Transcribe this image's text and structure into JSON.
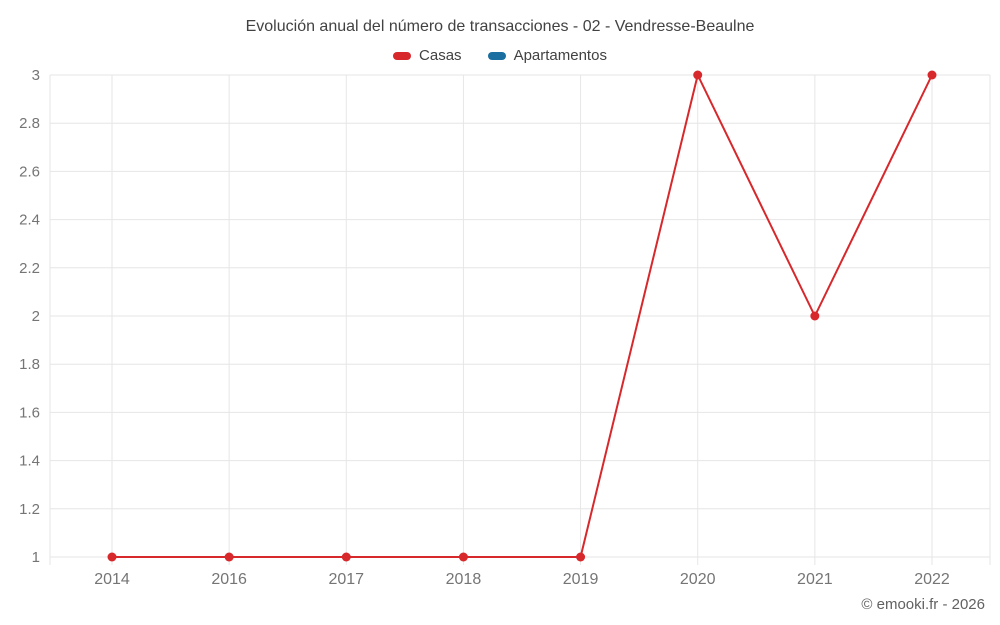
{
  "title": "Evolución anual del número de transacciones - 02 - Vendresse-Beaulne",
  "footer": "© emooki.fr - 2026",
  "colors": {
    "grid": "#e6e6e6",
    "axis_label": "#757575",
    "title_text": "#424242"
  },
  "chart_data": {
    "type": "line",
    "title": "Evolución anual del número de transacciones - 02 - Vendresse-Beaulne",
    "categories": [
      "2014",
      "2016",
      "2017",
      "2018",
      "2019",
      "2020",
      "2021",
      "2022"
    ],
    "series": [
      {
        "name": "Casas",
        "color": "#d7282c",
        "values": [
          1,
          1,
          1,
          1,
          1,
          3,
          2,
          3
        ]
      },
      {
        "name": "Apartamentos",
        "color": "#1b6fa0",
        "values": []
      }
    ],
    "xlabel": "",
    "ylabel": "",
    "ylim": [
      1,
      3
    ],
    "yticks": [
      "1",
      "1.2",
      "1.4",
      "1.6",
      "1.8",
      "2",
      "2.2",
      "2.4",
      "2.6",
      "2.8",
      "3"
    ],
    "grid": true,
    "legend_position": "top"
  }
}
